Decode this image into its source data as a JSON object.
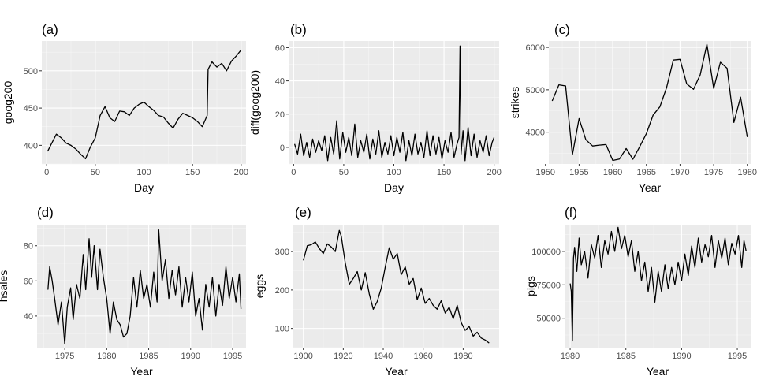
{
  "chart_data": [
    {
      "type": "line",
      "title": "(a)",
      "xlabel": "Day",
      "ylabel": "goog200",
      "xlim": [
        -5,
        205
      ],
      "ylim": [
        375,
        540
      ],
      "x_ticks": [
        0,
        50,
        100,
        150,
        200
      ],
      "y_ticks": [
        400,
        450,
        500
      ],
      "grid": true,
      "x": [
        1,
        10,
        15,
        20,
        25,
        30,
        35,
        40,
        45,
        50,
        55,
        60,
        65,
        70,
        75,
        80,
        85,
        90,
        95,
        100,
        105,
        110,
        115,
        120,
        125,
        130,
        135,
        140,
        145,
        150,
        155,
        160,
        165,
        166,
        170,
        175,
        180,
        185,
        190,
        195,
        200
      ],
      "values": [
        392,
        415,
        410,
        403,
        400,
        395,
        388,
        382,
        398,
        410,
        440,
        452,
        437,
        432,
        446,
        445,
        440,
        450,
        455,
        458,
        452,
        447,
        440,
        438,
        430,
        423,
        435,
        443,
        440,
        437,
        432,
        425,
        440,
        502,
        512,
        505,
        510,
        500,
        513,
        520,
        528
      ]
    },
    {
      "type": "line",
      "title": "(b)",
      "xlabel": "Day",
      "ylabel": "diff(goog200)",
      "xlim": [
        -5,
        205
      ],
      "ylim": [
        -10,
        64
      ],
      "x_ticks": [
        0,
        50,
        100,
        150,
        200
      ],
      "y_ticks": [
        0,
        20,
        40,
        60
      ],
      "grid": true,
      "x": [
        1,
        4,
        7,
        10,
        13,
        16,
        19,
        22,
        25,
        28,
        31,
        34,
        37,
        40,
        43,
        46,
        49,
        52,
        55,
        58,
        61,
        64,
        67,
        70,
        73,
        76,
        79,
        82,
        85,
        88,
        91,
        94,
        97,
        100,
        103,
        106,
        109,
        112,
        115,
        118,
        121,
        124,
        127,
        130,
        133,
        136,
        139,
        142,
        145,
        148,
        151,
        154,
        157,
        160,
        163,
        165,
        166,
        167,
        169,
        171,
        174,
        177,
        180,
        183,
        186,
        189,
        192,
        195,
        198,
        200
      ],
      "values": [
        2,
        -4,
        8,
        -5,
        3,
        -6,
        5,
        -3,
        4,
        -2,
        7,
        -8,
        6,
        -4,
        16,
        -7,
        9,
        -3,
        6,
        -5,
        14,
        -6,
        4,
        -3,
        8,
        -7,
        5,
        -4,
        10,
        -6,
        3,
        -4,
        7,
        -5,
        6,
        -3,
        9,
        -8,
        4,
        -5,
        8,
        -4,
        3,
        -6,
        10,
        -5,
        7,
        -4,
        6,
        -7,
        4,
        -3,
        9,
        -6,
        2,
        6,
        61,
        -4,
        10,
        -8,
        12,
        -5,
        8,
        -6,
        4,
        -3,
        7,
        -5,
        3,
        6
      ]
    },
    {
      "type": "line",
      "title": "(c)",
      "xlabel": "Year",
      "ylabel": "strikes",
      "xlim": [
        1950.5,
        1980.5
      ],
      "ylim": [
        3250,
        6150
      ],
      "x_ticks": [
        1950,
        1955,
        1960,
        1965,
        1970,
        1975,
        1980
      ],
      "y_ticks": [
        4000,
        5000,
        6000
      ],
      "grid": true,
      "x": [
        1951,
        1952,
        1953,
        1954,
        1955,
        1956,
        1957,
        1958,
        1959,
        1960,
        1961,
        1962,
        1963,
        1964,
        1965,
        1966,
        1967,
        1968,
        1969,
        1970,
        1971,
        1972,
        1973,
        1974,
        1975,
        1976,
        1977,
        1978,
        1979,
        1980
      ],
      "values": [
        4737,
        5117,
        5091,
        3468,
        4320,
        3825,
        3673,
        3694,
        3708,
        3333,
        3367,
        3614,
        3362,
        3655,
        3963,
        4405,
        4595,
        5045,
        5700,
        5716,
        5138,
        5010,
        5353,
        6074,
        5031,
        5648,
        5506,
        4230,
        4827,
        3885
      ]
    },
    {
      "type": "line",
      "title": "(d)",
      "xlabel": "Year",
      "ylabel": "hsales",
      "xlim": [
        1971.7,
        1996.6
      ],
      "ylim": [
        22,
        92
      ],
      "x_ticks": [
        1975,
        1980,
        1985,
        1990,
        1995
      ],
      "y_ticks": [
        40,
        60,
        80
      ],
      "grid": true,
      "x": [
        1973.0,
        1973.2,
        1973.5,
        1973.8,
        1974.2,
        1974.6,
        1975.0,
        1975.3,
        1975.7,
        1976.0,
        1976.4,
        1976.8,
        1977.2,
        1977.5,
        1977.9,
        1978.2,
        1978.5,
        1978.9,
        1979.2,
        1979.6,
        1980.0,
        1980.4,
        1980.8,
        1981.2,
        1981.6,
        1982.0,
        1982.4,
        1982.8,
        1983.2,
        1983.6,
        1984.0,
        1984.4,
        1984.8,
        1985.2,
        1985.6,
        1986.0,
        1986.2,
        1986.6,
        1987.0,
        1987.4,
        1987.8,
        1988.2,
        1988.6,
        1989.0,
        1989.4,
        1989.8,
        1990.2,
        1990.6,
        1991.0,
        1991.4,
        1991.8,
        1992.2,
        1992.6,
        1993.0,
        1993.4,
        1993.8,
        1994.2,
        1994.6,
        1995.0,
        1995.4,
        1995.8,
        1996.0
      ],
      "values": [
        55,
        68,
        60,
        50,
        35,
        48,
        24,
        45,
        56,
        38,
        58,
        50,
        75,
        55,
        84,
        62,
        80,
        55,
        78,
        62,
        50,
        30,
        48,
        38,
        35,
        28,
        30,
        40,
        62,
        45,
        66,
        50,
        58,
        45,
        65,
        48,
        89,
        60,
        72,
        50,
        66,
        52,
        68,
        45,
        62,
        48,
        65,
        40,
        50,
        32,
        58,
        45,
        62,
        40,
        58,
        46,
        68,
        50,
        62,
        48,
        64,
        44
      ]
    },
    {
      "type": "line",
      "title": "(e)",
      "xlabel": "Year",
      "ylabel": "eggs",
      "xlim": [
        1895,
        1998
      ],
      "ylim": [
        50,
        370
      ],
      "x_ticks": [
        1900,
        1920,
        1940,
        1960,
        1980
      ],
      "y_ticks": [
        100,
        200,
        300
      ],
      "grid": true,
      "x": [
        1900,
        1902,
        1904,
        1906,
        1908,
        1910,
        1912,
        1914,
        1916,
        1918,
        1919,
        1921,
        1923,
        1925,
        1927,
        1929,
        1931,
        1933,
        1935,
        1937,
        1939,
        1941,
        1943,
        1945,
        1947,
        1949,
        1951,
        1953,
        1955,
        1957,
        1959,
        1961,
        1963,
        1965,
        1967,
        1969,
        1971,
        1973,
        1975,
        1977,
        1979,
        1981,
        1983,
        1985,
        1987,
        1989,
        1991,
        1993
      ],
      "values": [
        277,
        315,
        318,
        325,
        308,
        295,
        320,
        312,
        300,
        355,
        340,
        270,
        215,
        230,
        248,
        200,
        245,
        190,
        150,
        170,
        205,
        260,
        310,
        280,
        295,
        240,
        260,
        215,
        230,
        175,
        205,
        165,
        178,
        160,
        150,
        172,
        140,
        155,
        125,
        160,
        115,
        95,
        105,
        80,
        90,
        75,
        70,
        62
      ]
    },
    {
      "type": "line",
      "title": "(f)",
      "xlabel": "Year",
      "ylabel": "pigs",
      "xlim": [
        1979.5,
        1996.2
      ],
      "ylim": [
        28000,
        120000
      ],
      "x_ticks": [
        1980,
        1985,
        1990,
        1995
      ],
      "y_ticks": [
        50000,
        75000,
        100000
      ],
      "grid": true,
      "x": [
        1980.0,
        1980.1,
        1980.2,
        1980.3,
        1980.4,
        1980.6,
        1980.8,
        1981.0,
        1981.3,
        1981.6,
        1981.9,
        1982.2,
        1982.5,
        1982.8,
        1983.1,
        1983.4,
        1983.7,
        1984.0,
        1984.3,
        1984.6,
        1984.9,
        1985.2,
        1985.5,
        1985.8,
        1986.1,
        1986.4,
        1986.7,
        1987.0,
        1987.3,
        1987.6,
        1987.9,
        1988.2,
        1988.5,
        1988.8,
        1989.1,
        1989.4,
        1989.7,
        1990.0,
        1990.3,
        1990.6,
        1990.9,
        1991.2,
        1991.5,
        1991.8,
        1992.1,
        1992.4,
        1992.7,
        1993.0,
        1993.3,
        1993.6,
        1993.9,
        1994.2,
        1994.5,
        1994.8,
        1995.1,
        1995.4,
        1995.6,
        1995.8
      ],
      "values": [
        76000,
        70000,
        33000,
        95000,
        103000,
        85000,
        110000,
        90000,
        100000,
        80000,
        105000,
        95000,
        112000,
        88000,
        108000,
        98000,
        115000,
        100000,
        118000,
        102000,
        112000,
        96000,
        108000,
        85000,
        100000,
        78000,
        92000,
        70000,
        88000,
        62000,
        85000,
        70000,
        90000,
        72000,
        88000,
        75000,
        92000,
        78000,
        98000,
        82000,
        104000,
        88000,
        110000,
        92000,
        105000,
        96000,
        112000,
        88000,
        108000,
        95000,
        110000,
        90000,
        106000,
        98000,
        112000,
        88000,
        108000,
        100000
      ]
    }
  ]
}
